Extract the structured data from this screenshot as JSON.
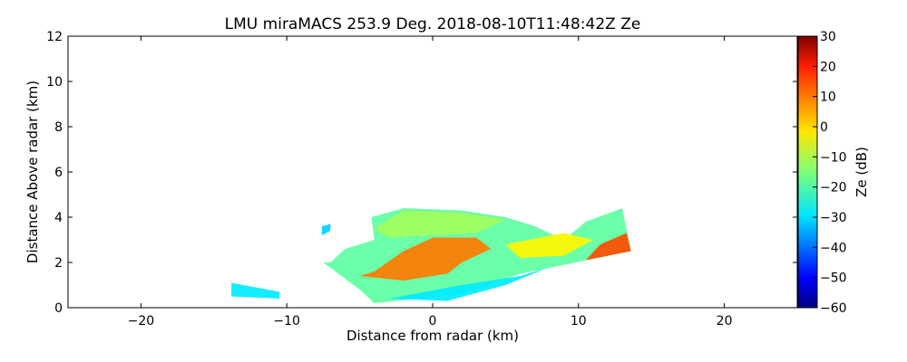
{
  "chart_data": {
    "type": "heatmap",
    "title": "LMU miraMACS 253.9 Deg. 2018-08-10T11:48:42Z  Ze",
    "xlabel": "Distance from radar (km)",
    "ylabel": "Distance Above radar  (km)",
    "xlim": [
      -25,
      25
    ],
    "ylim": [
      0,
      12
    ],
    "xticks": [
      -20,
      -10,
      0,
      10,
      20
    ],
    "yticks": [
      0,
      2,
      4,
      6,
      8,
      10,
      12
    ],
    "colorbar": {
      "label": "Ze (dB)",
      "range": [
        -60,
        30
      ],
      "ticks": [
        30,
        20,
        10,
        0,
        -10,
        -20,
        -30,
        -40,
        -50,
        -60
      ],
      "tick_labels": [
        "30",
        "20",
        "10",
        "0",
        "−10",
        "−20",
        "−30",
        "−40",
        "−50",
        "−60"
      ],
      "colormap": "jet"
    },
    "echo_regions": [
      {
        "name": "main-echo",
        "outline": [
          [
            -7,
            2.0
          ],
          [
            -6,
            2.6
          ],
          [
            -4,
            3.0
          ],
          [
            -4.2,
            4.0
          ],
          [
            -2,
            4.4
          ],
          [
            2,
            4.3
          ],
          [
            5,
            4.0
          ],
          [
            7,
            3.6
          ],
          [
            9,
            3.0
          ],
          [
            10.5,
            3.8
          ],
          [
            13,
            4.4
          ],
          [
            13.6,
            2.5
          ],
          [
            6,
            1.5
          ],
          [
            2,
            0.6
          ],
          [
            -4,
            0.2
          ],
          [
            -5,
            0.8
          ],
          [
            -7.5,
            2.0
          ]
        ],
        "ze": -18
      },
      {
        "name": "upper-echo",
        "outline": [
          [
            -4,
            3.5
          ],
          [
            -2,
            4.3
          ],
          [
            2,
            4.2
          ],
          [
            5,
            3.9
          ],
          [
            3,
            3.3
          ],
          [
            0,
            3.2
          ],
          [
            -3,
            3.1
          ]
        ],
        "ze": -12
      },
      {
        "name": "core-echo",
        "outline": [
          [
            -4,
            1.6
          ],
          [
            -2,
            2.5
          ],
          [
            0,
            3.1
          ],
          [
            3,
            3.1
          ],
          [
            4,
            2.6
          ],
          [
            2,
            2.0
          ],
          [
            1,
            1.5
          ],
          [
            -2,
            1.2
          ],
          [
            -5,
            1.4
          ]
        ],
        "ze": 8
      },
      {
        "name": "right-edge-echo",
        "outline": [
          [
            10.5,
            2.1
          ],
          [
            13.6,
            2.5
          ],
          [
            13.3,
            3.3
          ],
          [
            11.5,
            2.8
          ]
        ],
        "ze": 12
      },
      {
        "name": "mid-band-echo",
        "outline": [
          [
            5,
            2.8
          ],
          [
            9,
            3.3
          ],
          [
            11,
            3.0
          ],
          [
            9,
            2.3
          ],
          [
            6,
            2.2
          ]
        ],
        "ze": -3
      },
      {
        "name": "lower-band-echo",
        "outline": [
          [
            -3,
            0.4
          ],
          [
            2,
            1.0
          ],
          [
            6,
            1.4
          ],
          [
            8,
            1.8
          ],
          [
            5,
            1.0
          ],
          [
            1,
            0.3
          ]
        ],
        "ze": -28
      },
      {
        "name": "far-left-echo",
        "outline": [
          [
            -13.8,
            0.5
          ],
          [
            -10.5,
            0.4
          ],
          [
            -10.5,
            0.7
          ],
          [
            -13.8,
            1.1
          ]
        ],
        "ze": -28
      },
      {
        "name": "left-blip-echo",
        "outline": [
          [
            -7.6,
            3.2
          ],
          [
            -7.0,
            3.4
          ],
          [
            -7.0,
            3.7
          ],
          [
            -7.6,
            3.6
          ]
        ],
        "ze": -30
      }
    ]
  }
}
